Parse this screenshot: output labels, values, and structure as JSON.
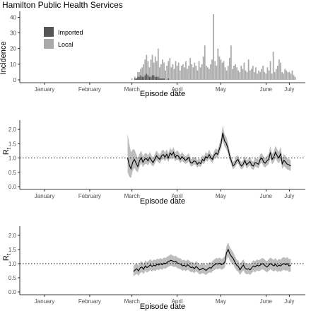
{
  "title": "Hamilton Public Health Services",
  "colors": {
    "imported": "#555555",
    "local": "#aaaaaa",
    "band": "#bdbdbd",
    "line": "#000000",
    "axis": "#000000",
    "tick_text": "#4d4d4d"
  },
  "chart_data": [
    {
      "type": "bar",
      "title": "Hamilton Public Health Services",
      "xlabel": "Episode date",
      "ylabel": "Incidence",
      "ylim": [
        0,
        42
      ],
      "yticks": [
        "0",
        "10",
        "20",
        "30",
        "40"
      ],
      "xticks": [
        "January",
        "February",
        "March",
        "April",
        "May",
        "June",
        "July"
      ],
      "legend": {
        "position": "top-left",
        "entries": [
          "Imported",
          "Local"
        ]
      },
      "series": [
        {
          "name": "Imported",
          "start": "2020-03-10",
          "values": [
            0,
            0,
            0,
            0,
            0,
            0,
            0,
            1,
            1,
            2,
            2,
            3,
            2,
            2,
            3,
            4,
            3,
            2,
            2,
            3,
            3,
            2,
            2,
            2,
            1,
            1,
            1,
            1,
            0,
            0,
            1,
            0,
            0,
            0,
            0,
            0,
            0,
            0,
            0,
            0,
            0,
            0,
            0,
            0,
            0,
            0,
            0,
            0,
            0,
            0,
            0,
            0,
            0,
            0,
            0,
            0,
            0,
            0,
            0,
            0,
            0,
            0,
            0,
            0,
            0,
            0,
            0,
            0,
            0,
            0,
            0,
            0,
            0,
            0,
            0,
            0,
            0,
            0,
            0,
            0,
            0,
            0,
            0,
            0,
            0,
            0,
            0,
            0,
            0,
            0,
            0,
            0,
            0,
            0,
            0,
            0,
            0,
            0,
            0,
            0,
            0,
            0,
            0,
            0,
            0,
            0,
            0,
            0,
            0,
            0,
            0,
            0,
            0,
            0,
            0,
            0,
            0,
            0
          ]
        },
        {
          "name": "Local",
          "start": "2020-03-10",
          "values": [
            0,
            0,
            0,
            0,
            0,
            1,
            0,
            1,
            0,
            3,
            3,
            4,
            6,
            8,
            10,
            12,
            9,
            6,
            11,
            13,
            8,
            13,
            10,
            18,
            7,
            9,
            12,
            10,
            6,
            9,
            11,
            14,
            8,
            10,
            7,
            12,
            9,
            11,
            6,
            9,
            10,
            8,
            12,
            7,
            9,
            14,
            10,
            8,
            11,
            9,
            6,
            12,
            8,
            10,
            15,
            22,
            9,
            8,
            7,
            10,
            13,
            42,
            12,
            9,
            20,
            15,
            13,
            11,
            12,
            8,
            6,
            9,
            14,
            22,
            7,
            9,
            10,
            8,
            6,
            5,
            9,
            7,
            11,
            6,
            5,
            13,
            6,
            7,
            9,
            5,
            8,
            4,
            6,
            5,
            7,
            9,
            5,
            4,
            8,
            6,
            12,
            4,
            18,
            5,
            7,
            9,
            13,
            11,
            5,
            4,
            7,
            6,
            5,
            5,
            4,
            6,
            3,
            2
          ]
        }
      ]
    },
    {
      "type": "line",
      "xlabel": "Episode date",
      "ylabel": "R",
      "ylabel_sub": "t",
      "ylim": [
        0,
        2.2
      ],
      "yticks": [
        "0.0",
        "0.5",
        "1.0",
        "1.5",
        "2.0"
      ],
      "xticks": [
        "January",
        "February",
        "March",
        "April",
        "May",
        "June",
        "July"
      ],
      "reference_line": 1.0,
      "x_start": "2020-03-12",
      "x_end": "2020-07-02",
      "mean": [
        1.0,
        0.75,
        0.62,
        0.85,
        0.95,
        0.82,
        0.7,
        0.9,
        1.02,
        0.85,
        0.95,
        0.98,
        0.9,
        1.02,
        0.92,
        0.84,
        0.96,
        1.08,
        1.0,
        0.95,
        1.08,
        1.12,
        1.03,
        1.13,
        1.0,
        1.18,
        1.1,
        1.2,
        1.02,
        1.1,
        1.06,
        0.95,
        1.05,
        0.98,
        0.92,
        0.96,
        1.02,
        0.84,
        0.82,
        0.9,
        0.88,
        0.78,
        0.85,
        0.8,
        0.95,
        0.9,
        1.05,
        1.0,
        1.12,
        1.0,
        0.95,
        1.1,
        1.18,
        1.12,
        1.32,
        1.5,
        1.88,
        1.6,
        1.52,
        1.35,
        1.08,
        0.9,
        0.72,
        0.78,
        0.9,
        0.95,
        0.8,
        0.72,
        0.78,
        0.92,
        0.76,
        0.82,
        0.88,
        0.75,
        0.72,
        0.84,
        0.82,
        0.78,
        0.95,
        1.0,
        0.86,
        0.82,
        0.9,
        0.95,
        1.2,
        0.95,
        1.03,
        1.2,
        1.08,
        1.0,
        1.15,
        0.8,
        0.92,
        0.85,
        0.78,
        0.76,
        0.72
      ],
      "lower": [
        0.5,
        0.35,
        0.3,
        0.55,
        0.66,
        0.55,
        0.5,
        0.7,
        0.82,
        0.68,
        0.77,
        0.8,
        0.74,
        0.85,
        0.76,
        0.7,
        0.8,
        0.92,
        0.85,
        0.81,
        0.93,
        0.97,
        0.89,
        0.98,
        0.86,
        1.02,
        0.95,
        1.04,
        0.88,
        0.95,
        0.92,
        0.82,
        0.91,
        0.85,
        0.79,
        0.83,
        0.88,
        0.72,
        0.7,
        0.78,
        0.76,
        0.66,
        0.73,
        0.68,
        0.82,
        0.78,
        0.92,
        0.87,
        0.98,
        0.87,
        0.83,
        0.97,
        1.04,
        0.98,
        1.17,
        1.33,
        1.62,
        1.4,
        1.32,
        1.18,
        0.93,
        0.77,
        0.6,
        0.66,
        0.77,
        0.82,
        0.68,
        0.6,
        0.65,
        0.78,
        0.63,
        0.69,
        0.74,
        0.62,
        0.59,
        0.7,
        0.68,
        0.64,
        0.79,
        0.84,
        0.7,
        0.67,
        0.74,
        0.78,
        1.0,
        0.78,
        0.85,
        1.0,
        0.88,
        0.81,
        0.93,
        0.62,
        0.72,
        0.66,
        0.6,
        0.58,
        0.54
      ],
      "upper": [
        1.85,
        1.5,
        1.2,
        1.3,
        1.3,
        1.15,
        1.0,
        1.15,
        1.25,
        1.06,
        1.15,
        1.18,
        1.08,
        1.21,
        1.1,
        1.0,
        1.14,
        1.26,
        1.17,
        1.11,
        1.25,
        1.29,
        1.19,
        1.3,
        1.16,
        1.36,
        1.27,
        1.38,
        1.18,
        1.27,
        1.22,
        1.1,
        1.21,
        1.13,
        1.06,
        1.1,
        1.17,
        0.98,
        0.96,
        1.04,
        1.02,
        0.92,
        0.99,
        0.94,
        1.1,
        1.05,
        1.21,
        1.15,
        1.29,
        1.15,
        1.09,
        1.26,
        1.34,
        1.28,
        1.5,
        1.7,
        2.15,
        1.83,
        1.75,
        1.55,
        1.25,
        1.05,
        0.86,
        0.92,
        1.05,
        1.1,
        0.94,
        0.86,
        0.93,
        1.08,
        0.91,
        0.97,
        1.04,
        0.9,
        0.87,
        1.0,
        0.98,
        0.94,
        1.13,
        1.18,
        1.04,
        1.0,
        1.08,
        1.14,
        1.42,
        1.14,
        1.23,
        1.42,
        1.3,
        1.21,
        1.39,
        1.0,
        1.14,
        1.06,
        0.98,
        0.96,
        0.92
      ]
    },
    {
      "type": "line",
      "xlabel": "Episode date",
      "ylabel": "R",
      "ylabel_sub": "t",
      "ylim": [
        0,
        2.2
      ],
      "yticks": [
        "0.0",
        "0.5",
        "1.0",
        "1.5",
        "2.0"
      ],
      "xticks": [
        "January",
        "February",
        "March",
        "April",
        "May",
        "June",
        "July"
      ],
      "reference_line": 1.0,
      "x_start": "2020-03-16",
      "x_end": "2020-07-02",
      "mean": [
        0.72,
        0.78,
        0.82,
        0.74,
        0.85,
        0.88,
        0.8,
        0.92,
        0.86,
        0.9,
        0.96,
        0.9,
        0.95,
        0.92,
        0.98,
        0.95,
        1.0,
        0.96,
        1.02,
        1.0,
        1.05,
        1.08,
        1.12,
        1.1,
        1.06,
        1.08,
        1.02,
        1.0,
        0.98,
        0.92,
        0.95,
        0.9,
        0.96,
        0.92,
        0.86,
        0.88,
        0.82,
        0.9,
        0.85,
        0.78,
        0.8,
        0.84,
        0.8,
        0.76,
        0.82,
        0.86,
        0.84,
        0.92,
        0.96,
        1.0,
        0.98,
        1.02,
        0.96,
        1.0,
        1.05,
        1.38,
        1.5,
        1.34,
        1.25,
        1.18,
        1.05,
        0.95,
        0.9,
        0.78,
        0.88,
        0.95,
        0.84,
        0.8,
        0.82,
        0.78,
        0.86,
        0.92,
        0.88,
        0.95,
        0.92,
        0.95,
        1.0,
        0.98,
        0.92,
        0.88,
        0.95,
        1.0,
        0.96,
        0.92,
        0.98,
        0.9,
        0.95,
        0.92,
        0.98,
        1.0,
        0.96,
        1.0,
        0.92,
        0.95
      ],
      "lower": [
        0.55,
        0.6,
        0.64,
        0.57,
        0.67,
        0.7,
        0.63,
        0.74,
        0.69,
        0.72,
        0.78,
        0.72,
        0.77,
        0.74,
        0.8,
        0.77,
        0.82,
        0.78,
        0.84,
        0.82,
        0.87,
        0.9,
        0.93,
        0.91,
        0.88,
        0.89,
        0.84,
        0.82,
        0.8,
        0.75,
        0.78,
        0.73,
        0.79,
        0.75,
        0.69,
        0.71,
        0.66,
        0.73,
        0.68,
        0.62,
        0.64,
        0.67,
        0.63,
        0.6,
        0.66,
        0.69,
        0.67,
        0.75,
        0.78,
        0.82,
        0.8,
        0.84,
        0.78,
        0.82,
        0.86,
        1.15,
        1.25,
        1.1,
        1.02,
        0.96,
        0.85,
        0.76,
        0.71,
        0.6,
        0.69,
        0.76,
        0.66,
        0.62,
        0.64,
        0.6,
        0.67,
        0.73,
        0.69,
        0.76,
        0.73,
        0.76,
        0.8,
        0.78,
        0.73,
        0.69,
        0.75,
        0.8,
        0.76,
        0.72,
        0.77,
        0.7,
        0.74,
        0.71,
        0.76,
        0.78,
        0.74,
        0.77,
        0.7,
        0.72
      ],
      "upper": [
        0.92,
        0.98,
        1.02,
        0.93,
        1.05,
        1.08,
        0.99,
        1.12,
        1.05,
        1.1,
        1.16,
        1.09,
        1.15,
        1.12,
        1.18,
        1.15,
        1.2,
        1.16,
        1.22,
        1.2,
        1.25,
        1.28,
        1.33,
        1.3,
        1.26,
        1.28,
        1.22,
        1.2,
        1.18,
        1.11,
        1.14,
        1.09,
        1.15,
        1.11,
        1.05,
        1.07,
        1.0,
        1.09,
        1.04,
        0.96,
        0.98,
        1.03,
        0.98,
        0.94,
        1.0,
        1.05,
        1.03,
        1.11,
        1.16,
        1.2,
        1.18,
        1.22,
        1.16,
        1.2,
        1.26,
        1.62,
        1.75,
        1.58,
        1.48,
        1.4,
        1.26,
        1.15,
        1.1,
        0.97,
        1.08,
        1.15,
        1.03,
        0.99,
        1.01,
        0.97,
        1.06,
        1.12,
        1.08,
        1.15,
        1.12,
        1.15,
        1.2,
        1.18,
        1.12,
        1.08,
        1.16,
        1.22,
        1.17,
        1.13,
        1.2,
        1.11,
        1.17,
        1.14,
        1.21,
        1.23,
        1.19,
        1.24,
        1.15,
        1.18
      ]
    }
  ]
}
